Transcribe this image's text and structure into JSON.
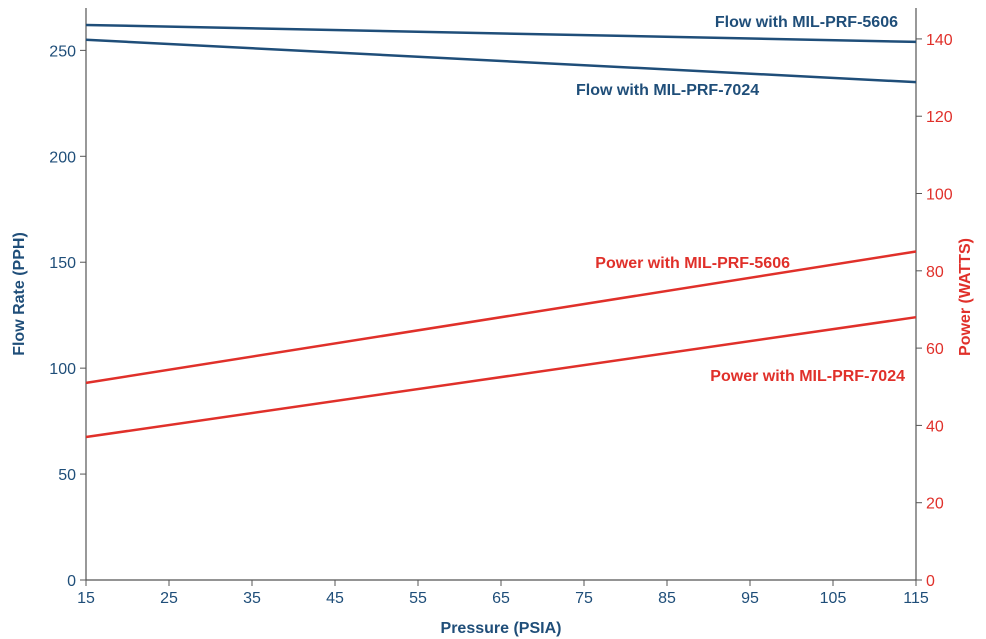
{
  "chart_data": {
    "type": "line",
    "title": "",
    "xlabel": "Pressure (PSIA)",
    "ylabel": "Flow Rate (PPH)",
    "y2label": "Power (WATTS)",
    "xlim": [
      15,
      115
    ],
    "ylim": [
      0,
      270
    ],
    "y2lim": [
      0,
      148
    ],
    "x_ticks": [
      15,
      25,
      35,
      45,
      55,
      65,
      75,
      85,
      95,
      105,
      115
    ],
    "y_ticks": [
      0,
      50,
      100,
      150,
      200,
      250
    ],
    "y2_ticks": [
      0,
      20,
      40,
      60,
      80,
      100,
      120,
      140
    ],
    "grid": false,
    "legend": "none",
    "series": [
      {
        "name": "Flow with MIL-PRF-5606",
        "axis": "left",
        "color": "#1f4e79",
        "x": [
          15,
          115
        ],
        "y": [
          262,
          254
        ]
      },
      {
        "name": "Flow with MIL-PRF-7024",
        "axis": "left",
        "color": "#1f4e79",
        "x": [
          15,
          115
        ],
        "y": [
          255,
          235
        ]
      },
      {
        "name": "Power with MIL-PRF-5606",
        "axis": "right",
        "color": "#e0302a",
        "x": [
          15,
          115
        ],
        "y": [
          51,
          85
        ]
      },
      {
        "name": "Power with MIL-PRF-7024",
        "axis": "right",
        "color": "#e0302a",
        "x": [
          15,
          115
        ],
        "y": [
          37,
          68
        ]
      }
    ],
    "colors": {
      "left_axis": "#1f4e79",
      "right_axis": "#e0302a",
      "x_axis": "#1f4e79"
    }
  }
}
